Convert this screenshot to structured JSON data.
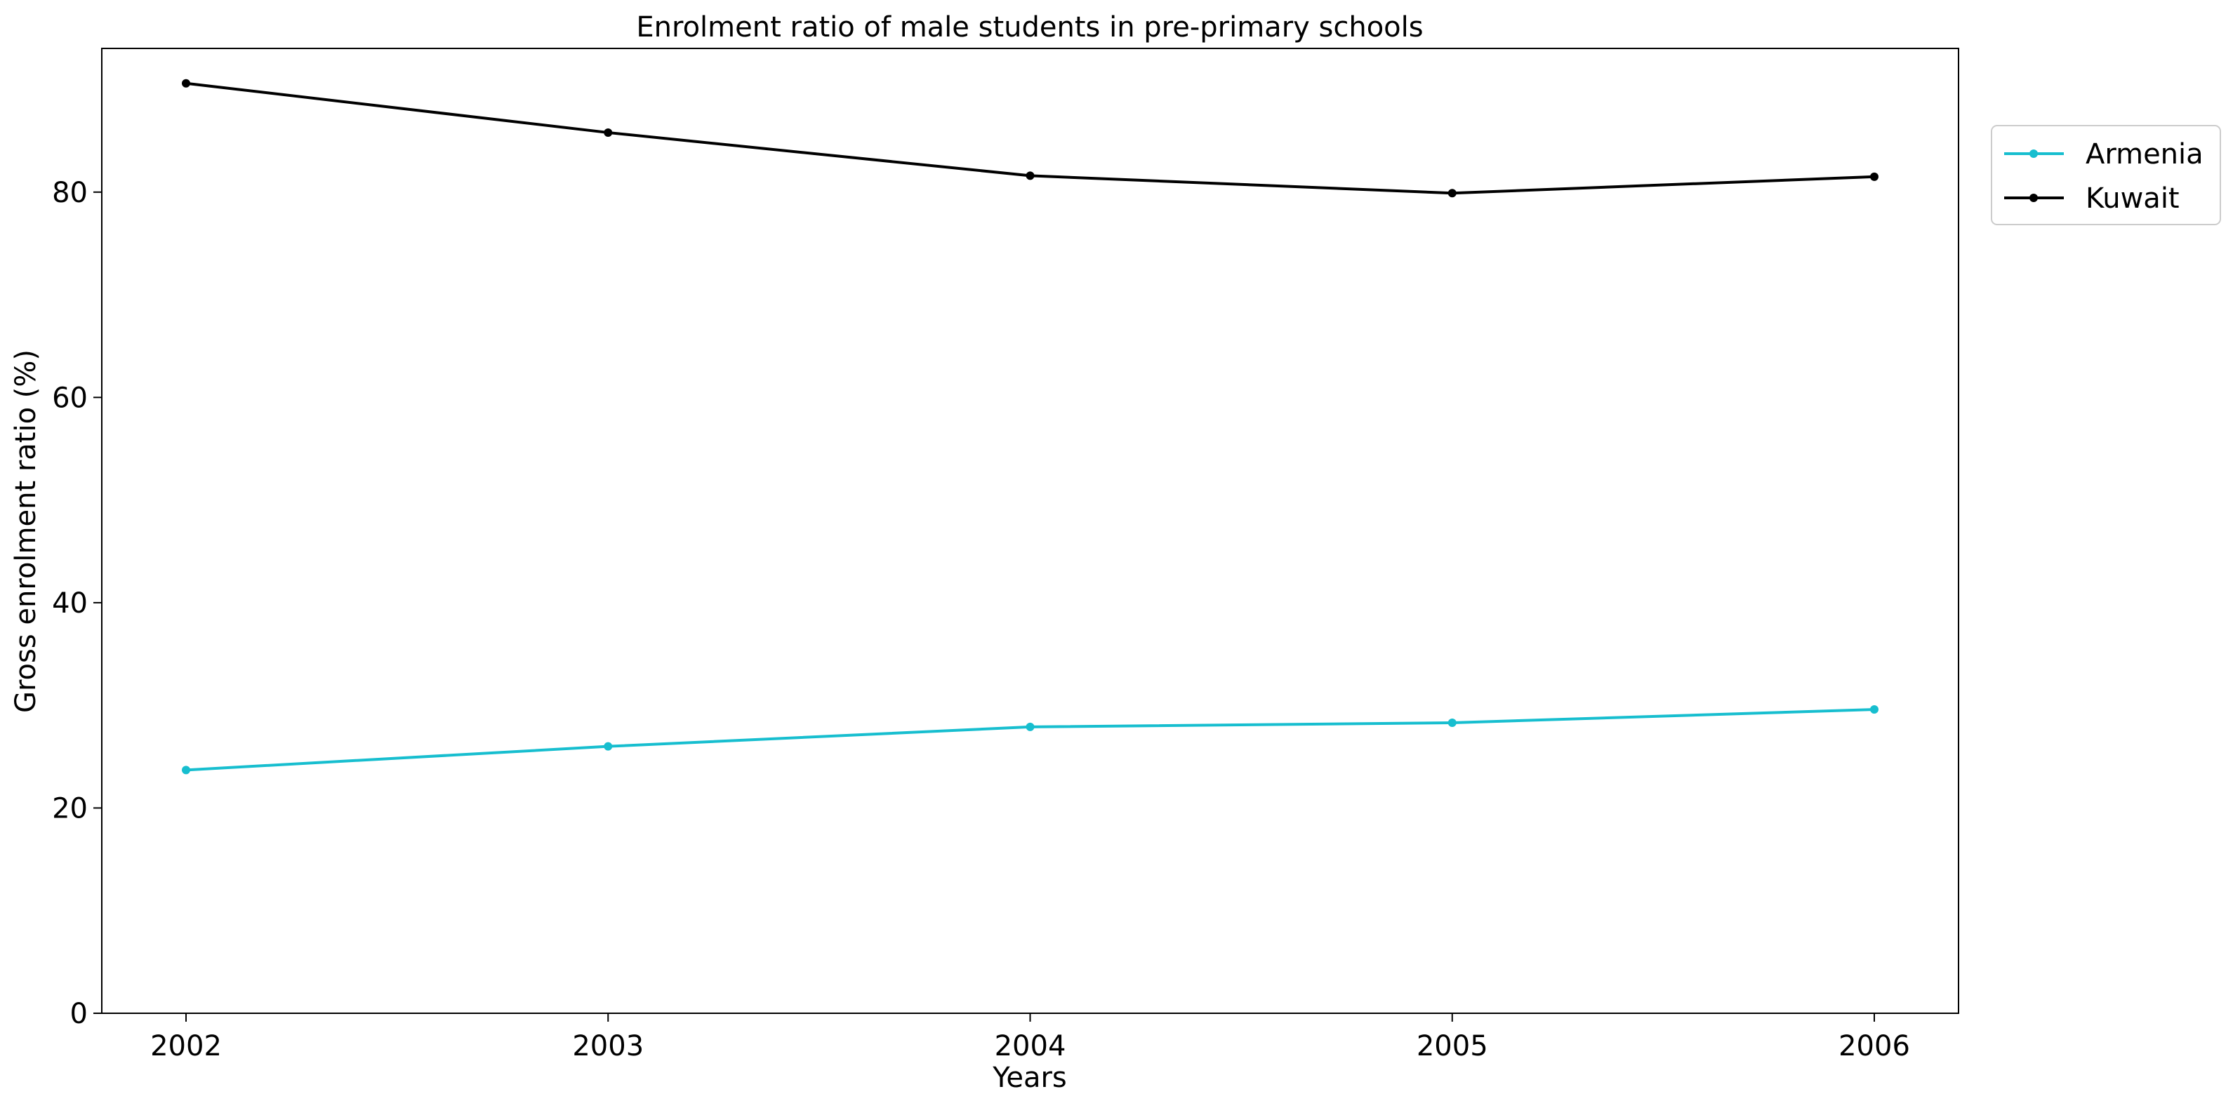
{
  "chart_data": {
    "type": "line",
    "title": "Enrolment ratio of male students in pre-primary schools",
    "xlabel": "Years",
    "ylabel": "Gross enrolment ratio (%)",
    "categories": [
      "2002",
      "2003",
      "2004",
      "2005",
      "2006"
    ],
    "ylim": [
      0,
      94
    ],
    "yticks": [
      0,
      20,
      40,
      60,
      80
    ],
    "grid": false,
    "legend_position": "top-right, outside plot",
    "series": [
      {
        "name": "Armenia",
        "color": "#17becf",
        "values": [
          23.7,
          26.0,
          27.9,
          28.3,
          29.6
        ]
      },
      {
        "name": "Kuwait",
        "color": "#000000",
        "values": [
          90.6,
          85.8,
          81.6,
          79.9,
          81.5
        ]
      }
    ]
  }
}
